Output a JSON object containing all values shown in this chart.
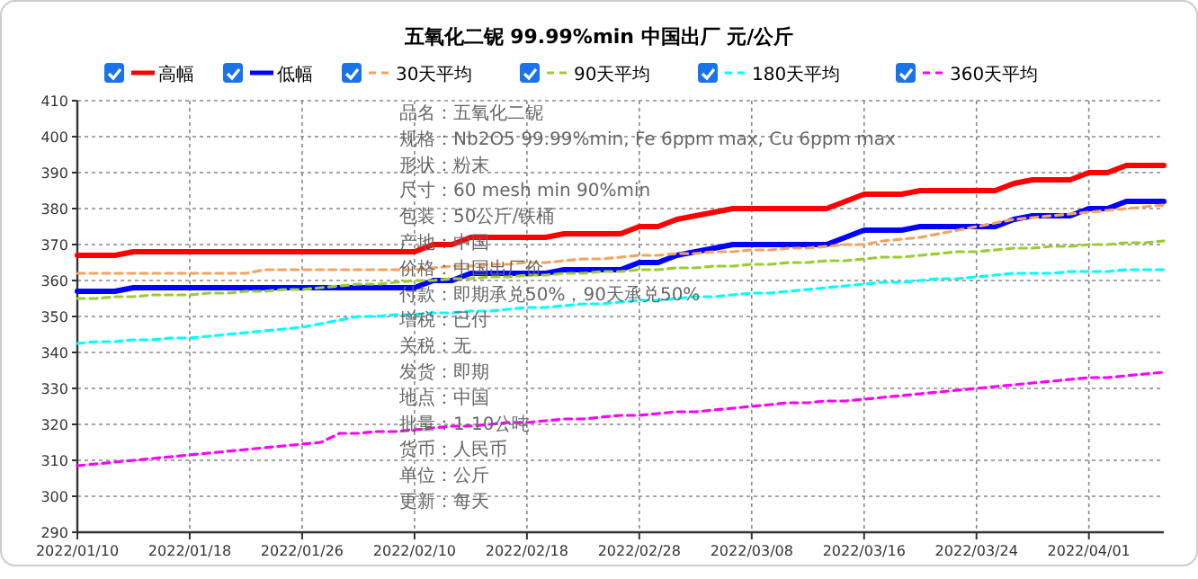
{
  "chart_data": {
    "type": "line",
    "title": "五氧化二铌 99.99%min 中国出厂 元/公斤",
    "categories": [
      "2022/01/10",
      null,
      null,
      null,
      null,
      null,
      "2022/01/18",
      null,
      null,
      null,
      null,
      null,
      "2022/01/26",
      null,
      null,
      null,
      null,
      null,
      "2022/02/10",
      null,
      null,
      null,
      null,
      null,
      "2022/02/18",
      null,
      null,
      null,
      null,
      null,
      "2022/02/28",
      null,
      null,
      null,
      null,
      null,
      "2022/03/08",
      null,
      null,
      null,
      null,
      null,
      "2022/03/16",
      null,
      null,
      null,
      null,
      null,
      "2022/03/24",
      null,
      null,
      null,
      null,
      null,
      "2022/04/01",
      null,
      null,
      null,
      null
    ],
    "series": [
      {
        "name": "高幅",
        "color": "#ff0000",
        "line_style": "solid",
        "values": [
          367,
          367,
          367,
          368,
          368,
          368,
          368,
          368,
          368,
          368,
          368,
          368,
          368,
          368,
          368,
          368,
          368,
          368,
          368,
          370,
          370,
          372,
          372,
          372,
          372,
          372,
          373,
          373,
          373,
          373,
          375,
          375,
          377,
          378,
          379,
          380,
          380,
          380,
          380,
          380,
          380,
          382,
          384,
          384,
          384,
          385,
          385,
          385,
          385,
          385,
          387,
          388,
          388,
          388,
          390,
          390,
          392,
          392,
          392
        ]
      },
      {
        "name": "低幅",
        "color": "#0000ff",
        "line_style": "solid",
        "values": [
          357,
          357,
          357,
          358,
          358,
          358,
          358,
          358,
          358,
          358,
          358,
          358,
          358,
          358,
          358,
          358,
          358,
          358,
          358,
          360,
          360,
          362,
          362,
          362,
          362,
          362,
          363,
          363,
          363,
          363,
          365,
          365,
          367,
          368,
          369,
          370,
          370,
          370,
          370,
          370,
          370,
          372,
          374,
          374,
          374,
          375,
          375,
          375,
          375,
          375,
          377,
          378,
          378,
          378,
          380,
          380,
          382,
          382,
          382
        ]
      },
      {
        "name": "30天平均",
        "color": "#f4a460",
        "line_style": "dashed",
        "values": [
          362,
          362,
          362,
          362,
          362,
          362,
          362,
          362,
          362,
          362,
          363,
          363,
          363,
          363,
          363,
          363,
          363,
          363,
          363,
          363.5,
          364,
          364,
          364.5,
          364.5,
          365,
          365,
          365.5,
          366,
          366,
          366.5,
          367,
          367,
          367.5,
          367.5,
          368,
          368,
          368.5,
          368.5,
          369,
          369,
          369.5,
          370,
          370,
          371,
          371.5,
          372,
          373,
          374,
          375,
          376,
          377,
          377.5,
          378,
          378.5,
          379,
          379.5,
          380,
          380.5,
          381
        ]
      },
      {
        "name": "90天平均",
        "color": "#9acd32",
        "line_style": "dashed",
        "values": [
          355,
          355,
          355.5,
          355.5,
          356,
          356,
          356,
          356.5,
          356.5,
          357,
          357,
          357.5,
          357.5,
          358,
          358.5,
          359,
          359,
          359.5,
          360,
          360,
          360.5,
          360.5,
          361,
          361,
          361.5,
          361.5,
          362,
          362,
          362.5,
          362.5,
          363,
          363,
          363.5,
          363.5,
          364,
          364,
          364.5,
          364.5,
          365,
          365,
          365.5,
          365.5,
          366,
          366.5,
          366.5,
          367,
          367.5,
          368,
          368,
          368.5,
          369,
          369,
          369.5,
          369.5,
          370,
          370,
          370.5,
          370.5,
          371
        ]
      },
      {
        "name": "180天平均",
        "color": "#00ffff",
        "line_style": "dashed",
        "values": [
          342.5,
          343,
          343,
          343.5,
          343.5,
          344,
          344,
          344.5,
          345,
          345.5,
          346,
          346.5,
          347,
          348,
          349,
          350,
          350,
          350.5,
          350.5,
          351,
          351,
          351.5,
          351.5,
          352,
          352.5,
          352.5,
          353,
          353.5,
          353.5,
          354,
          354.5,
          354.5,
          355,
          355.5,
          355.5,
          356,
          356.5,
          356.5,
          357,
          357.5,
          358,
          358.5,
          359,
          359.5,
          359.5,
          360,
          360.5,
          360.5,
          361,
          361.5,
          362,
          362,
          362,
          362.5,
          362.5,
          362.5,
          363,
          363,
          363
        ]
      },
      {
        "name": "360天平均",
        "color": "#ff00ff",
        "line_style": "dashed",
        "values": [
          308.5,
          309,
          309.5,
          310,
          310.5,
          311,
          311.5,
          312,
          312.5,
          313,
          313.5,
          314,
          314.5,
          315,
          317.5,
          317.5,
          318,
          318,
          318.5,
          319,
          319.5,
          319.5,
          320,
          320.5,
          320.5,
          321,
          321.5,
          321.5,
          322,
          322.5,
          322.5,
          323,
          323.5,
          323.5,
          324,
          324.5,
          325,
          325.5,
          326,
          326,
          326.5,
          326.5,
          327,
          327.5,
          328,
          328.5,
          329,
          329.5,
          330,
          330.5,
          331,
          331.5,
          332,
          332.5,
          333,
          333,
          333.5,
          334,
          334.5
        ]
      }
    ],
    "ylim": [
      290,
      410
    ],
    "yticks": [
      290,
      300,
      310,
      320,
      330,
      340,
      350,
      360,
      370,
      380,
      390,
      400,
      410
    ],
    "grid": true,
    "legend": "top",
    "annotations": [
      "品名：五氧化二铌",
      "规格：Nb2O5 99.99%min, Fe 6ppm max, Cu 6ppm max",
      "形状：粉末",
      "尺寸：60 mesh min 90%min",
      "包装：50公斤/铁桶",
      "产地：中国",
      "价格：中国出厂价",
      "付款：即期承兑50%，90天承兑50%",
      "增税：已付",
      "关税：无",
      "发货：即期",
      "地点：中国",
      "批量：1-10公吨",
      "货币：人民币",
      "单位：公斤",
      "更新：每天"
    ]
  }
}
